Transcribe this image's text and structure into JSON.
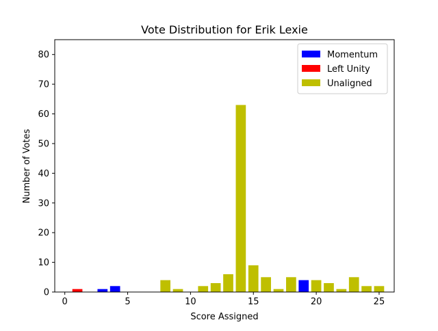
{
  "chart_data": {
    "type": "bar",
    "title": "Vote Distribution for Erik Lexie",
    "xlabel": "Score Assigned",
    "ylabel": "Number of Votes",
    "xlim": [
      -0.8,
      26.2
    ],
    "ylim": [
      0,
      85
    ],
    "xticks": [
      0,
      5,
      10,
      15,
      20,
      25
    ],
    "yticks": [
      0,
      10,
      20,
      30,
      40,
      50,
      60,
      70,
      80
    ],
    "bar_width": 0.8,
    "grid": false,
    "legend_position": "top-right",
    "series": [
      {
        "name": "Momentum",
        "color": "#0000ff",
        "x": [
          3,
          4,
          19
        ],
        "values": [
          1,
          2,
          4
        ]
      },
      {
        "name": "Left Unity",
        "color": "#ff0000",
        "x": [
          1
        ],
        "values": [
          1
        ]
      },
      {
        "name": "Unaligned",
        "color": "#bfbf00",
        "x": [
          8,
          9,
          11,
          12,
          13,
          14,
          15,
          16,
          17,
          18,
          20,
          21,
          22,
          23,
          24,
          25
        ],
        "values": [
          4,
          1,
          2,
          3,
          6,
          63,
          9,
          5,
          1,
          5,
          4,
          3,
          1,
          5,
          2,
          2
        ]
      }
    ]
  }
}
